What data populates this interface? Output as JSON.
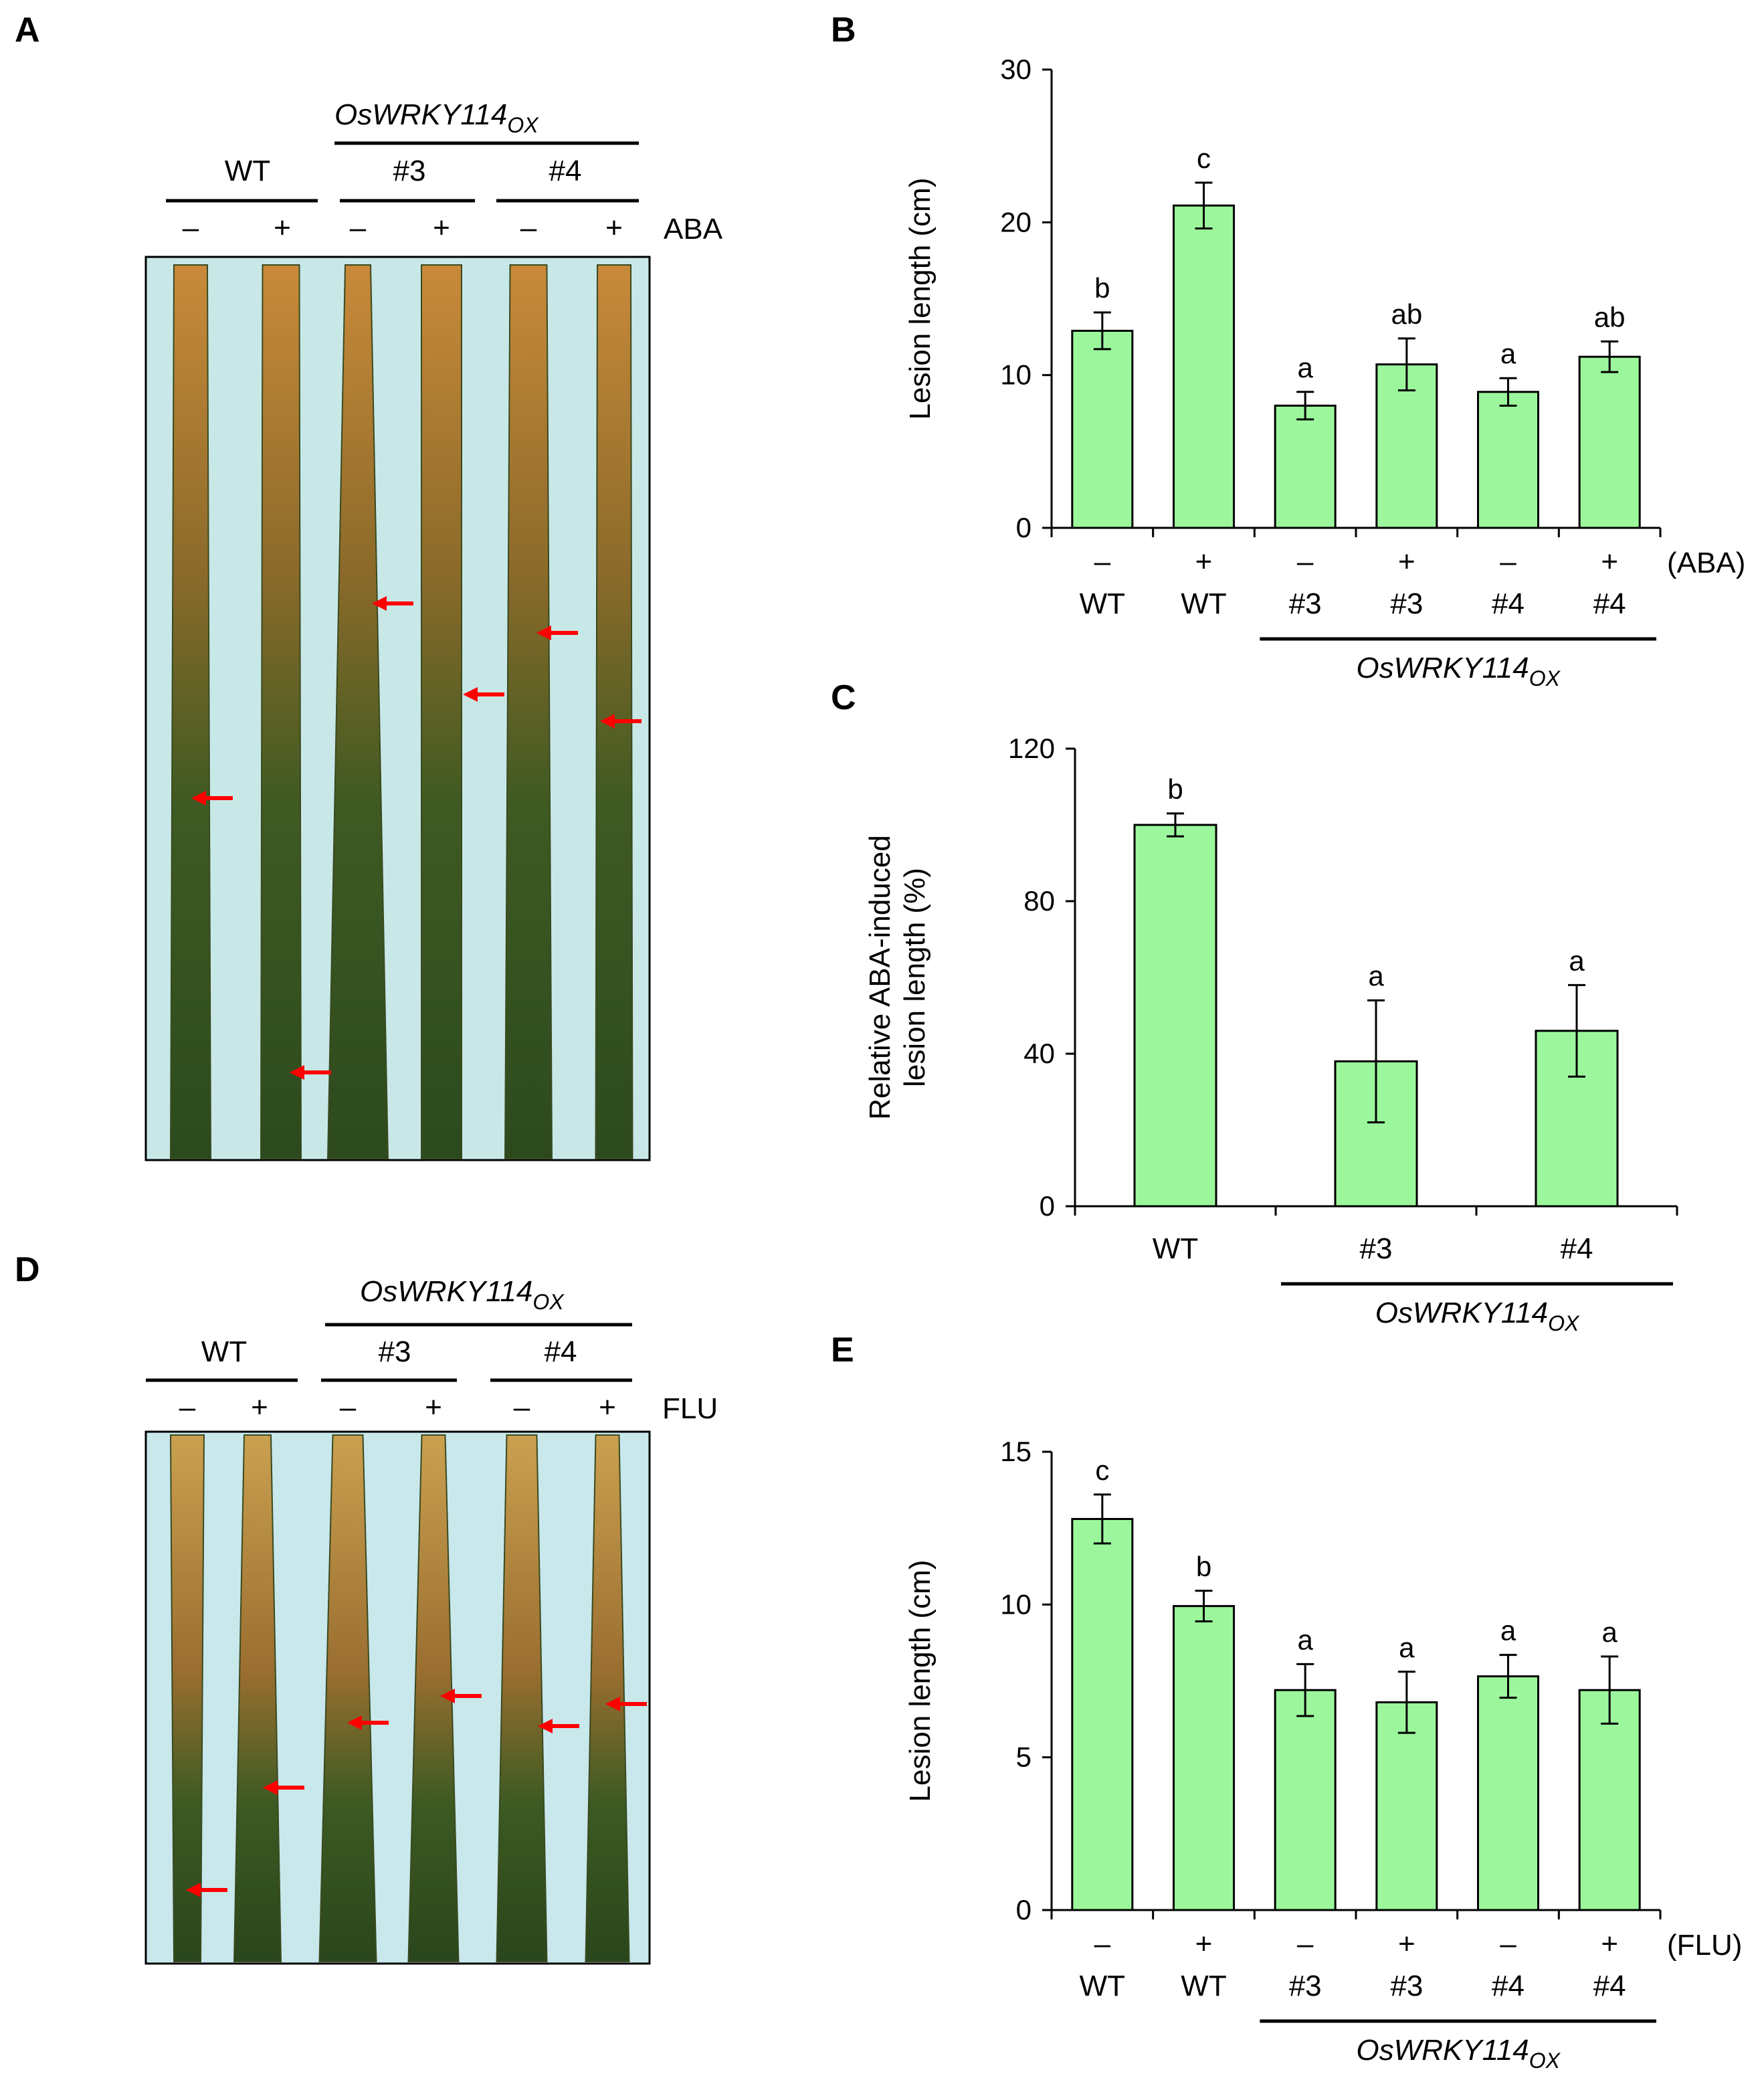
{
  "panels": {
    "A": "A",
    "B": "B",
    "C": "C",
    "D": "D",
    "E": "E"
  },
  "genotype_italic": "OsWRKY114",
  "genotype_sub": "OX",
  "photo_A": {
    "wt": "WT",
    "line3": "#3",
    "line4": "#4",
    "minus": "–",
    "plus": "+",
    "treatment": "ABA",
    "leaves": [
      "WT –",
      "WT +",
      "#3 –",
      "#3 +",
      "#4 –",
      "#4 +"
    ]
  },
  "photo_D": {
    "wt": "WT",
    "line3": "#3",
    "line4": "#4",
    "minus": "–",
    "plus": "+",
    "treatment": "FLU",
    "leaves": [
      "WT –",
      "WT +",
      "#3 –",
      "#3 +",
      "#4 –",
      "#4 +"
    ]
  },
  "colors": {
    "bar_fill": "#9cf79c",
    "bar_stroke": "#000000",
    "arrow": "#ff0000"
  },
  "chart_data": [
    {
      "id": "B",
      "type": "bar",
      "ylabel": "Lesion length (cm)",
      "ylim": [
        0,
        30
      ],
      "yticks": [
        0,
        10,
        20,
        30
      ],
      "signs": [
        "–",
        "+",
        "–",
        "+",
        "–",
        "+"
      ],
      "treatment": "(ABA)",
      "categories": [
        "WT",
        "WT",
        "#3",
        "#3",
        "#4",
        "#4"
      ],
      "values": [
        12.9,
        21.1,
        8.0,
        10.7,
        8.9,
        11.2
      ],
      "errors": [
        1.2,
        1.5,
        0.9,
        1.7,
        0.9,
        1.0
      ],
      "sig": [
        "b",
        "c",
        "a",
        "ab",
        "a",
        "ab"
      ]
    },
    {
      "id": "C",
      "type": "bar",
      "ylabel_lines": [
        "Relative ABA-induced",
        "lesion length (%)"
      ],
      "ylim": [
        0,
        120
      ],
      "yticks": [
        0,
        40,
        80,
        120
      ],
      "categories": [
        "WT",
        "#3",
        "#4"
      ],
      "values": [
        100,
        38,
        46
      ],
      "errors": [
        3,
        16,
        12
      ],
      "sig": [
        "b",
        "a",
        "a"
      ]
    },
    {
      "id": "E",
      "type": "bar",
      "ylabel": "Lesion length (cm)",
      "ylim": [
        0,
        15
      ],
      "yticks": [
        0,
        5,
        10,
        15
      ],
      "signs": [
        "–",
        "+",
        "–",
        "+",
        "–",
        "+"
      ],
      "treatment": "(FLU)",
      "categories": [
        "WT",
        "WT",
        "#3",
        "#3",
        "#4",
        "#4"
      ],
      "values": [
        12.8,
        9.95,
        7.2,
        6.8,
        7.65,
        7.2
      ],
      "errors": [
        0.8,
        0.5,
        0.85,
        1.0,
        0.7,
        1.1
      ],
      "sig": [
        "c",
        "b",
        "a",
        "a",
        "a",
        "a"
      ]
    }
  ]
}
